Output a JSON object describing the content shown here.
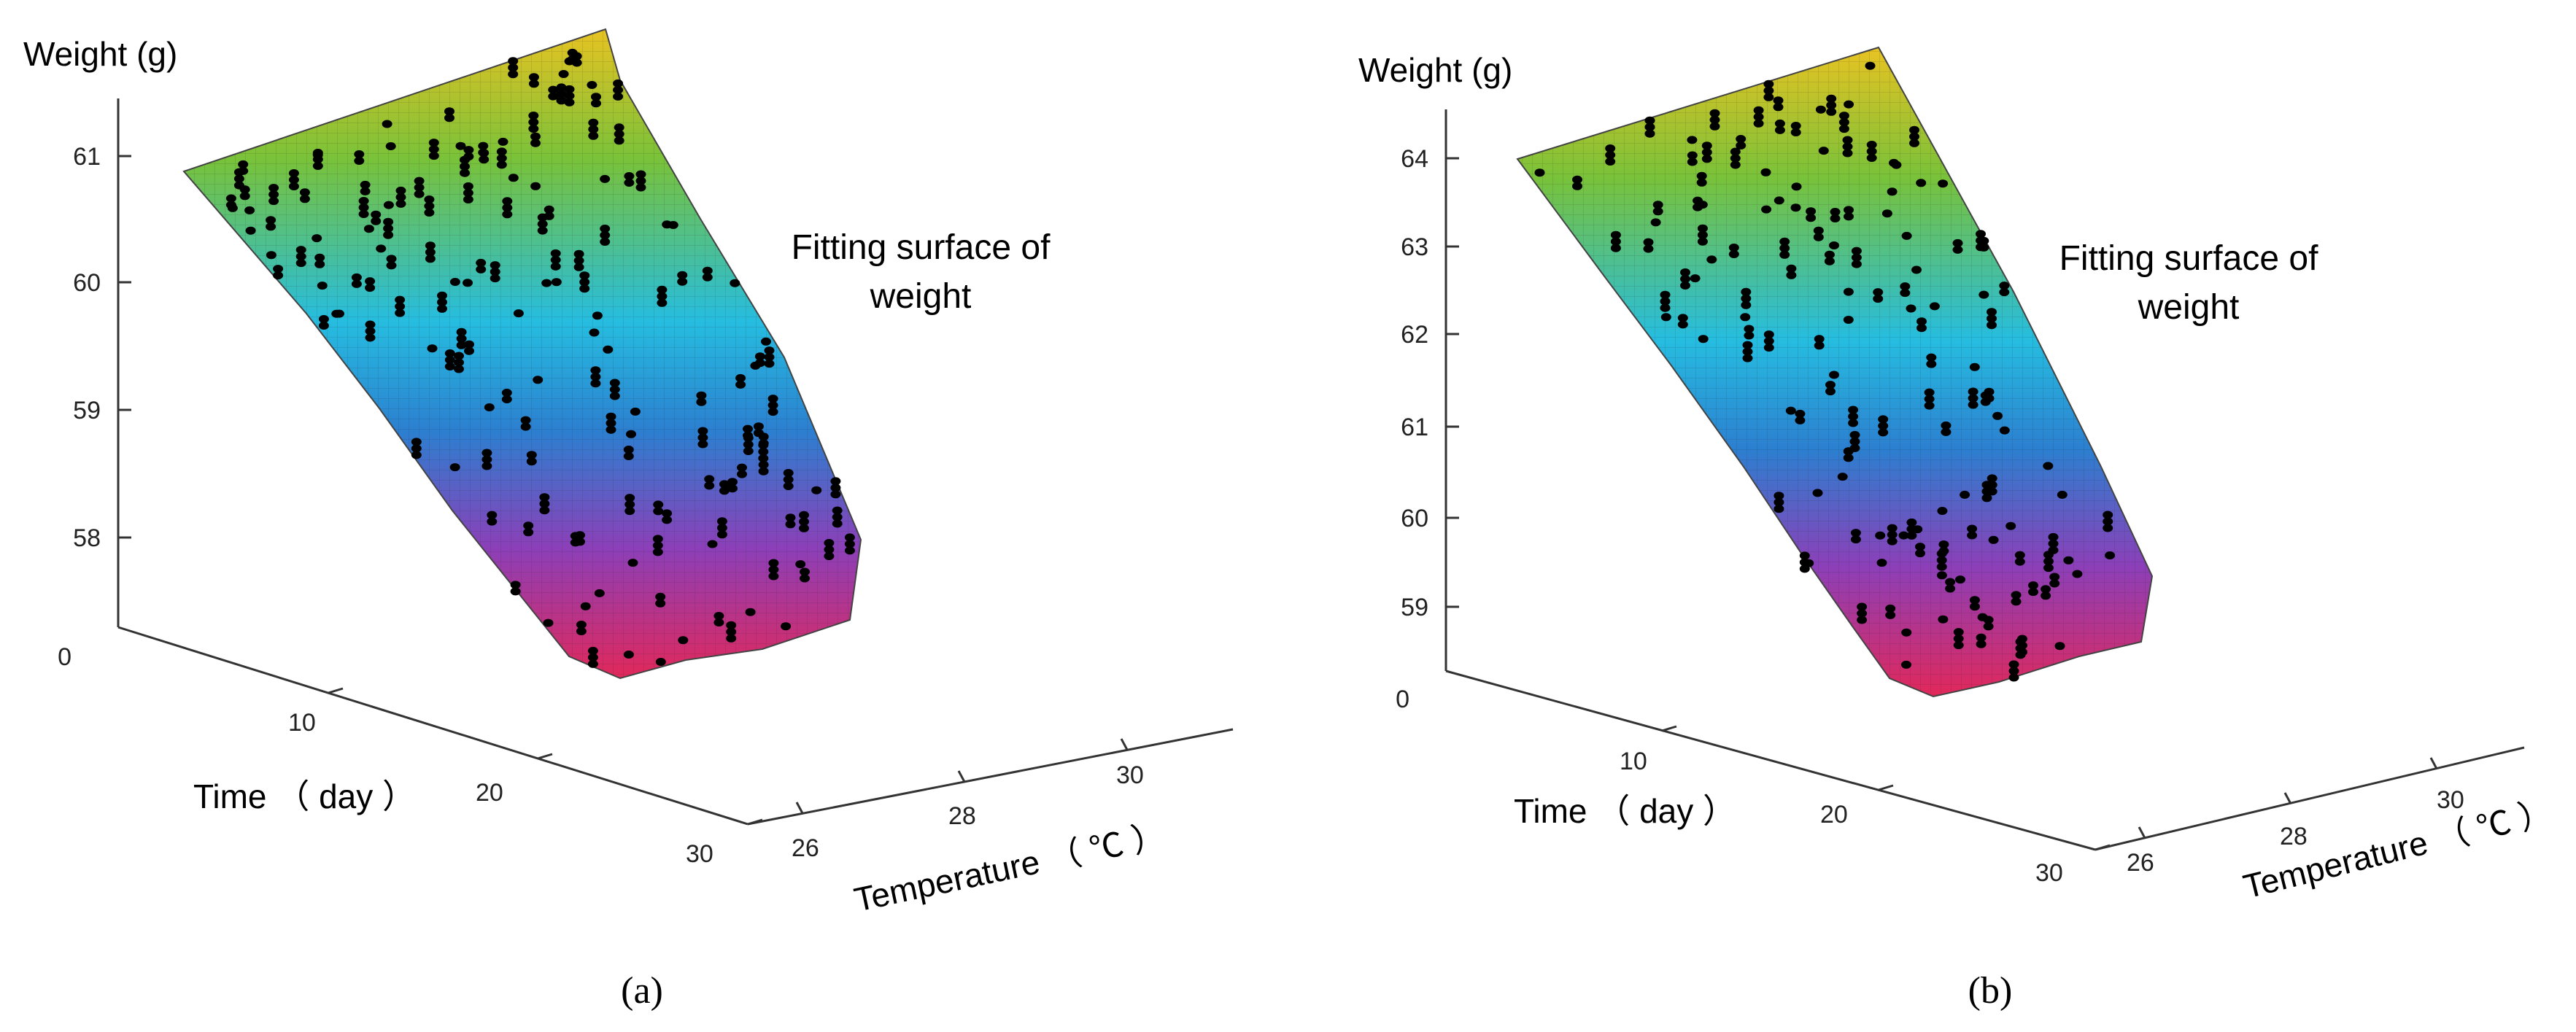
{
  "chart_data": [
    {
      "type": "surface3d",
      "panel_label": "(a)",
      "zlabel": "Weight (g)",
      "xlabel": "Time （ day ）",
      "ylabel": "Temperature （ ℃ ）",
      "annotation_line1": "Fitting surface of",
      "annotation_line2": "weight",
      "zticks": [
        "61",
        "60",
        "59",
        "58",
        "0"
      ],
      "xticks": [
        "10",
        "20",
        "30"
      ],
      "yticks": [
        "26",
        "28",
        "30"
      ],
      "zlim": [
        57.3,
        61.3
      ],
      "xlim": [
        0,
        30
      ],
      "ylim": [
        25,
        31
      ],
      "surface_high_weight": 61.0,
      "surface_low_weight": 57.5,
      "colormap": [
        "#e8c322",
        "#79c239",
        "#26bde0",
        "#2c7fd0",
        "#8c3fb8",
        "#e2285a"
      ]
    },
    {
      "type": "surface3d",
      "panel_label": "(b)",
      "zlabel": "Weight (g)",
      "xlabel": "Time （ day ）",
      "ylabel": "Temperature （ ℃ ）",
      "annotation_line1": "Fitting surface of",
      "annotation_line2": "weight",
      "zticks": [
        "64",
        "63",
        "62",
        "61",
        "60",
        "59",
        "0"
      ],
      "xticks": [
        "10",
        "20",
        "30"
      ],
      "yticks": [
        "26",
        "28",
        "30"
      ],
      "zlim": [
        58.5,
        64.5
      ],
      "xlim": [
        0,
        30
      ],
      "ylim": [
        25,
        31
      ],
      "surface_high_weight": 64.0,
      "surface_low_weight": 58.6,
      "colormap": [
        "#e8c322",
        "#79c239",
        "#26bde0",
        "#2c7fd0",
        "#8c3fb8",
        "#e2285a"
      ]
    }
  ]
}
